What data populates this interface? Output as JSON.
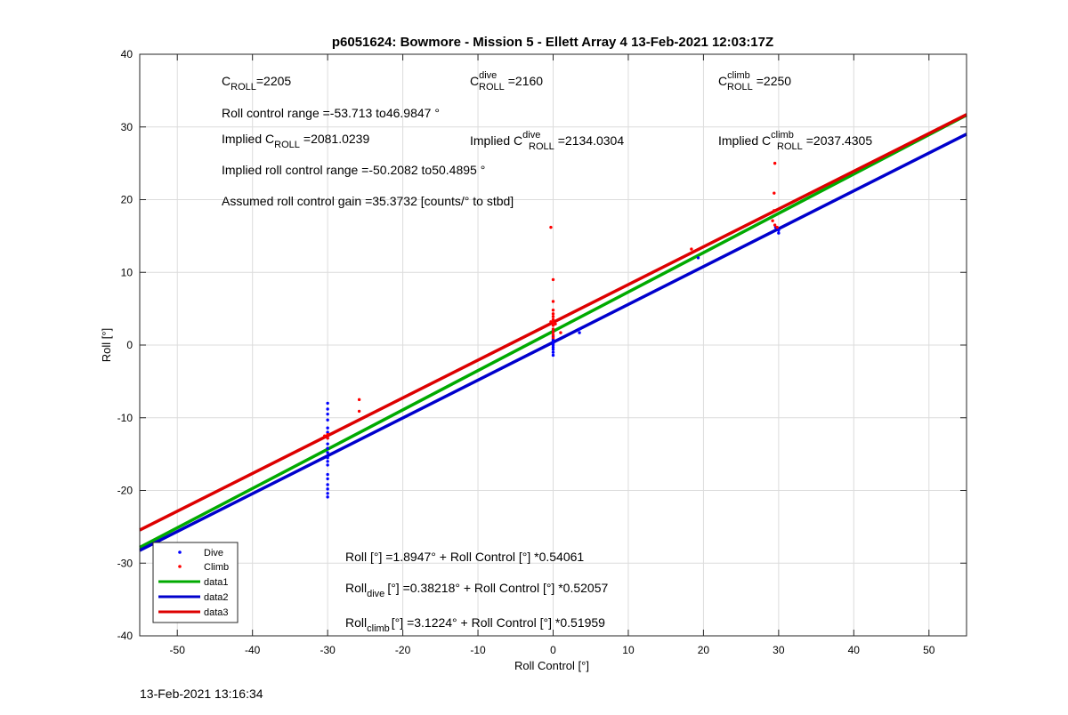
{
  "chart_data": {
    "type": "scatter",
    "title": "p6051624: Bowmore - Mission 5 - Ellett Array 4 13-Feb-2021 12:03:17Z",
    "xlabel": "Roll Control [°]",
    "ylabel": "Roll [°]",
    "xlim": [
      -55,
      55
    ],
    "ylim": [
      -40,
      40
    ],
    "xticks": [
      -50,
      -40,
      -30,
      -20,
      -10,
      0,
      10,
      20,
      30,
      40,
      50
    ],
    "yticks": [
      -40,
      -30,
      -20,
      -10,
      0,
      10,
      20,
      30,
      40
    ],
    "grid": true,
    "legend_position": "bottom-left",
    "series": [
      {
        "name": "Dive",
        "kind": "points",
        "color": "#0000ff",
        "points": [
          [
            -30,
            -8
          ],
          [
            -30,
            -8.8
          ],
          [
            -30,
            -9.5
          ],
          [
            -30,
            -10.3
          ],
          [
            -30,
            -11.4
          ],
          [
            -30,
            -12
          ],
          [
            -30,
            -12.8
          ],
          [
            -30,
            -13.6
          ],
          [
            -30,
            -14.2
          ],
          [
            -30,
            -14.8
          ],
          [
            -30,
            -15.5
          ],
          [
            -30,
            -16
          ],
          [
            -30,
            -16.5
          ],
          [
            -30,
            -17.8
          ],
          [
            -30,
            -18.4
          ],
          [
            -30,
            -19.2
          ],
          [
            -30,
            -19.8
          ],
          [
            -30,
            -20.4
          ],
          [
            -30,
            -20.9
          ],
          [
            0,
            1.8
          ],
          [
            0,
            1.2
          ],
          [
            0,
            0.8
          ],
          [
            0,
            0.4
          ],
          [
            0,
            0
          ],
          [
            0,
            -0.3
          ],
          [
            0,
            -0.6
          ],
          [
            0,
            -1
          ],
          [
            0,
            -1.4
          ],
          [
            0,
            0.2
          ],
          [
            0,
            0.6
          ],
          [
            3.5,
            1.7
          ],
          [
            3.5,
            2.2
          ],
          [
            19.3,
            12
          ],
          [
            29.6,
            16.2
          ],
          [
            30,
            15.8
          ],
          [
            30,
            15.4
          ]
        ]
      },
      {
        "name": "Climb",
        "kind": "points",
        "color": "#ff0000",
        "points": [
          [
            -30,
            -12.3
          ],
          [
            -30,
            -12.8
          ],
          [
            -30.4,
            -12.5
          ],
          [
            -25.8,
            -7.5
          ],
          [
            -25.8,
            -9.1
          ],
          [
            -0.3,
            16.2
          ],
          [
            0,
            9
          ],
          [
            0,
            6
          ],
          [
            0,
            4.8
          ],
          [
            0,
            4.3
          ],
          [
            0,
            3.9
          ],
          [
            0,
            3.5
          ],
          [
            0,
            3.1
          ],
          [
            0,
            2.7
          ],
          [
            0,
            2.2
          ],
          [
            0,
            1.8
          ],
          [
            0,
            1.4
          ],
          [
            0,
            1.0
          ],
          [
            -0.3,
            3.2
          ],
          [
            0.3,
            2.9
          ],
          [
            1,
            1.7
          ],
          [
            18.4,
            13.2
          ],
          [
            29.5,
            25
          ],
          [
            29.4,
            20.9
          ],
          [
            29.4,
            18.5
          ],
          [
            29.2,
            17.1
          ],
          [
            29.5,
            16.5
          ],
          [
            29.8,
            16.2
          ]
        ]
      },
      {
        "name": "data1",
        "kind": "line",
        "color": "#00aa00",
        "intercept": 1.8947,
        "slope": 0.54061
      },
      {
        "name": "data2",
        "kind": "line",
        "color": "#0000cc",
        "intercept": 0.38218,
        "slope": 0.52057
      },
      {
        "name": "data3",
        "kind": "line",
        "color": "#dd0000",
        "intercept": 3.1224,
        "slope": 0.51959
      }
    ],
    "annotations": {
      "c_roll_base": "C",
      "c_roll_sub": "ROLL",
      "c_roll_value": "=2205",
      "c_dive_sup": "dive",
      "c_dive_value": "=2160",
      "c_climb_sup": "climb",
      "c_climb_value": "=2250",
      "roll_control_range": "Roll control range =-53.713 to46.9847 °",
      "implied_prefix": "Implied C",
      "implied_c_roll_value": "=2081.0239",
      "implied_c_dive_value": "=2134.0304",
      "implied_c_climb_value": "=2037.4305",
      "implied_range": "Implied roll control range =-50.2082 to50.4895 °",
      "gain": "Assumed roll control gain =35.3732 [counts/° to stbd]",
      "eq_all": "Roll [°] =1.8947° + Roll Control [°] *0.54061",
      "eq_dive_base": "Roll",
      "eq_dive_sub": "dive",
      "eq_dive_rest": "[°] =0.38218° + Roll Control [°] *0.52057",
      "eq_climb_base": "Roll",
      "eq_climb_sub": "climb",
      "eq_climb_rest": "[°] =3.1224° + Roll Control [°] *0.51959"
    }
  },
  "footer_timestamp": "13-Feb-2021 13:16:34"
}
